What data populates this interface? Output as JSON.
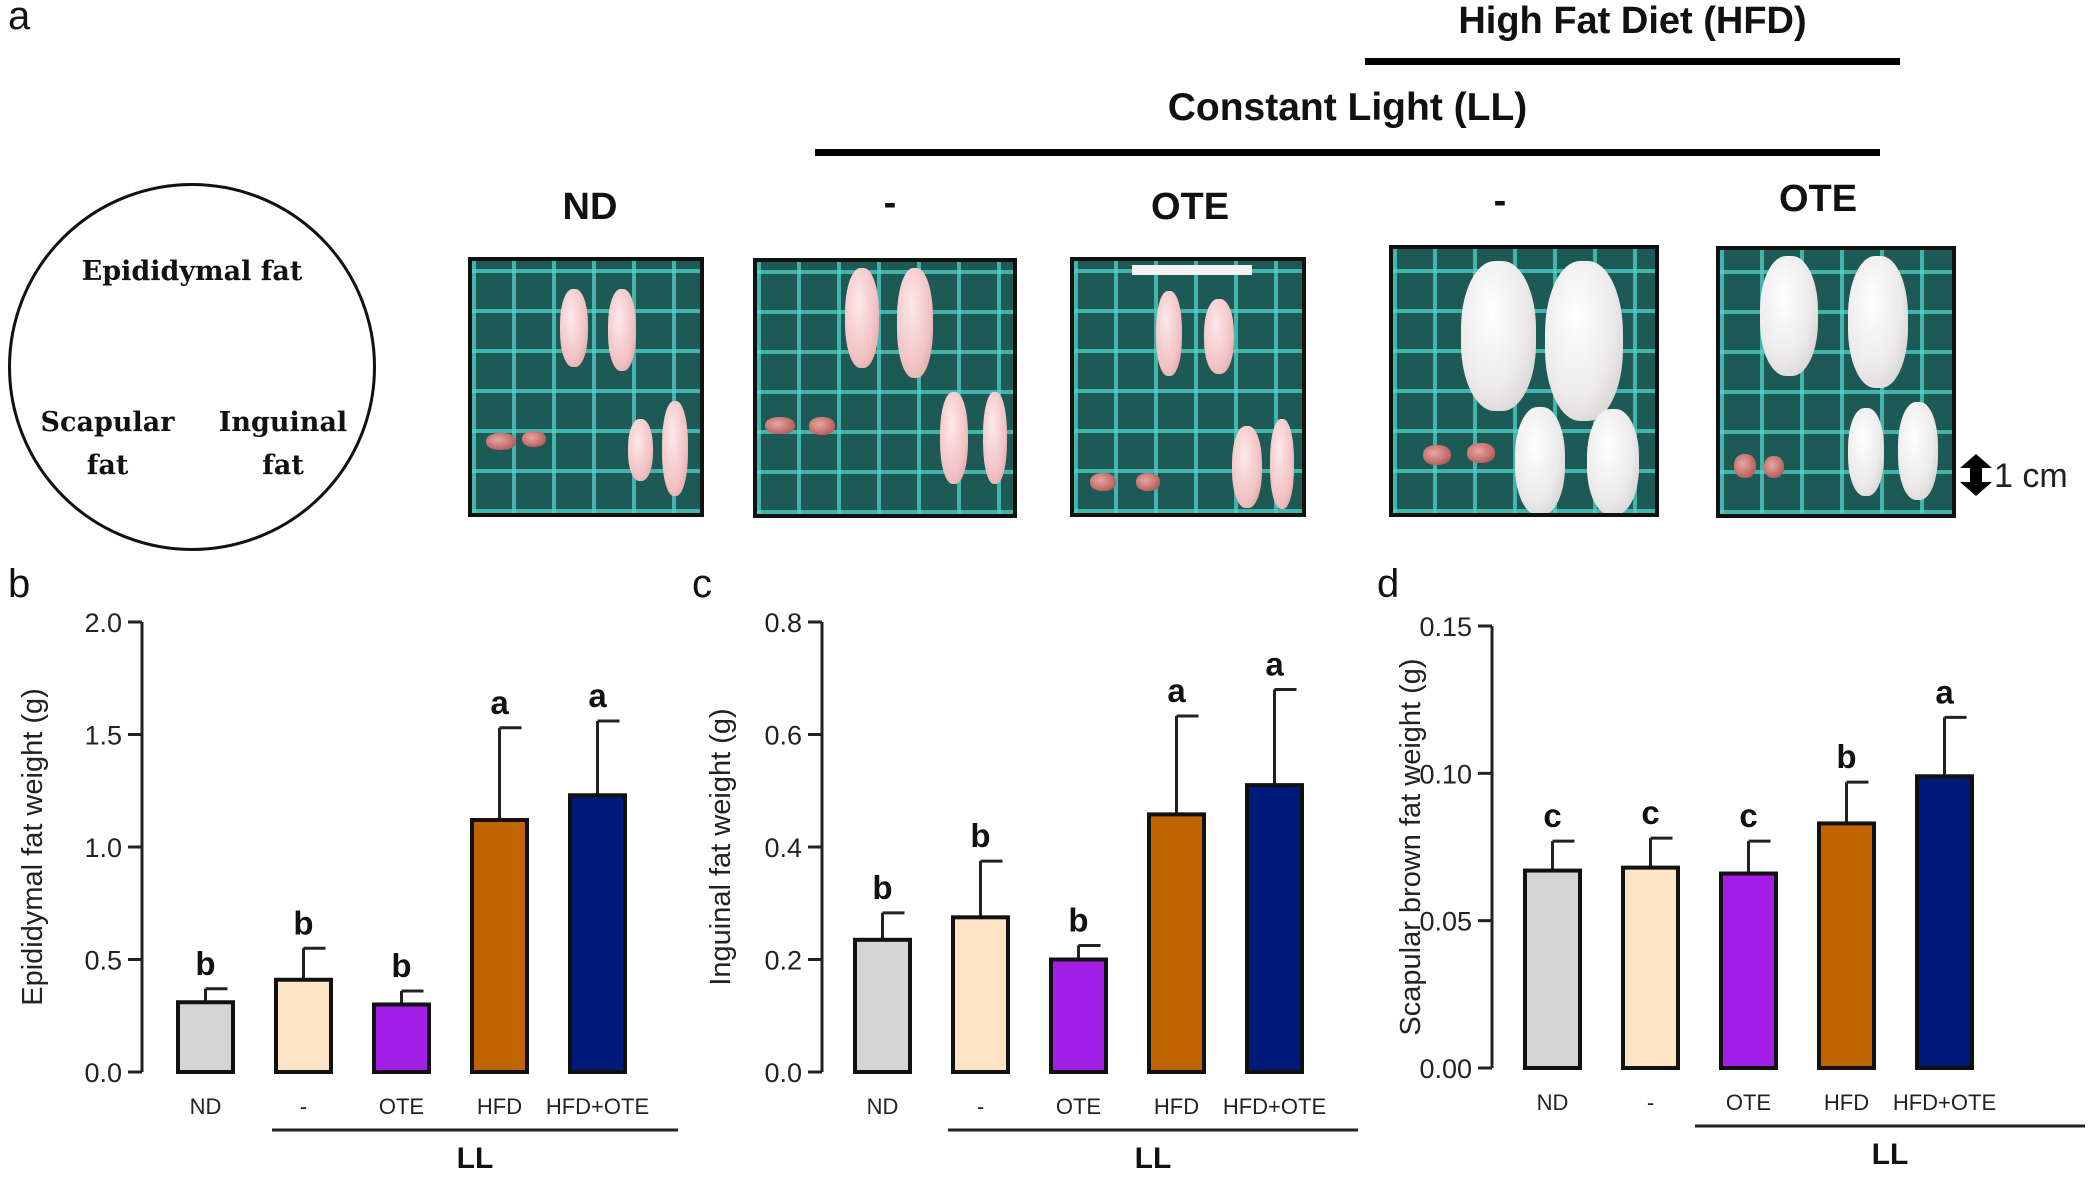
{
  "panel_labels": [
    "a",
    "b",
    "c",
    "d"
  ],
  "panel_a": {
    "hfd_label": "High Fat Diet (HFD)",
    "ll_label": "Constant Light (LL)",
    "group_labels": [
      "ND",
      "-",
      "OTE",
      "-",
      "OTE"
    ],
    "diagram": {
      "epididymal": "Epididymal fat",
      "scapular_1": "Scapular",
      "scapular_2": "fat",
      "inguinal_1": "Inguinal",
      "inguinal_2": "fat"
    },
    "scale": "1 cm"
  },
  "chart_data": [
    {
      "type": "bar",
      "panel": "b",
      "ylabel": "Epididymal fat weight (g)",
      "categories": [
        "ND",
        "-",
        "OTE",
        "HFD",
        "HFD+OTE"
      ],
      "values": [
        0.31,
        0.41,
        0.3,
        1.12,
        1.23
      ],
      "errors": [
        0.06,
        0.14,
        0.06,
        0.41,
        0.33
      ],
      "letters": [
        "b",
        "b",
        "b",
        "a",
        "a"
      ],
      "colors": [
        "#d4d4d4",
        "#fce4c4",
        "#a21fe8",
        "#c06400",
        "#001a7a"
      ],
      "ylim": [
        0,
        2.0
      ],
      "yticks": [
        0.0,
        0.5,
        1.0,
        1.5,
        2.0
      ],
      "ytick_labels": [
        "0.0",
        "0.5",
        "1.0",
        "1.5",
        "2.0"
      ],
      "group_label": "LL"
    },
    {
      "type": "bar",
      "panel": "c",
      "ylabel": "Inguinal fat weight (g)",
      "categories": [
        "ND",
        "-",
        "OTE",
        "HFD",
        "HFD+OTE"
      ],
      "values": [
        0.235,
        0.275,
        0.2,
        0.458,
        0.51
      ],
      "errors": [
        0.048,
        0.1,
        0.025,
        0.175,
        0.17
      ],
      "letters": [
        "b",
        "b",
        "b",
        "a",
        "a"
      ],
      "colors": [
        "#d4d4d4",
        "#fce4c4",
        "#a21fe8",
        "#c06400",
        "#001a7a"
      ],
      "ylim": [
        0,
        0.8
      ],
      "yticks": [
        0.0,
        0.2,
        0.4,
        0.6,
        0.8
      ],
      "ytick_labels": [
        "0.0",
        "0.2",
        "0.4",
        "0.6",
        "0.8"
      ],
      "group_label": "LL"
    },
    {
      "type": "bar",
      "panel": "d",
      "ylabel": "Scapular brown fat weight (g)",
      "categories": [
        "ND",
        "-",
        "OTE",
        "HFD",
        "HFD+OTE"
      ],
      "values": [
        0.067,
        0.068,
        0.066,
        0.083,
        0.099
      ],
      "errors": [
        0.01,
        0.01,
        0.011,
        0.014,
        0.02
      ],
      "letters": [
        "c",
        "c",
        "c",
        "b",
        "a"
      ],
      "colors": [
        "#d4d4d4",
        "#fce4c4",
        "#a21fe8",
        "#c06400",
        "#001a7a"
      ],
      "ylim": [
        0,
        0.15
      ],
      "yticks": [
        0.0,
        0.05,
        0.1,
        0.15
      ],
      "ytick_labels": [
        "0.00",
        "0.05",
        "0.10",
        "0.15"
      ],
      "group_label": "LL"
    }
  ]
}
